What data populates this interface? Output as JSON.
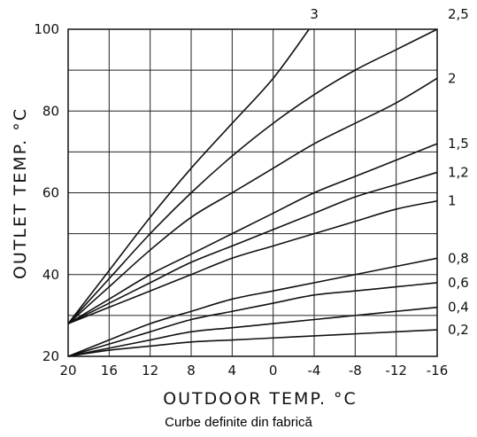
{
  "caption": "Curbe definite din fabrică",
  "chart_data": {
    "type": "line",
    "xlabel": "OUTDOOR TEMP. °C",
    "ylabel": "OUTLET TEMP. °C",
    "xlim": [
      20,
      -16
    ],
    "ylim": [
      20,
      100
    ],
    "x_ticks": [
      "20",
      "16",
      "12",
      "8",
      "4",
      "0",
      "-4",
      "-8",
      "-12",
      "-16"
    ],
    "y_ticks": [
      "20",
      "40",
      "60",
      "80",
      "100"
    ],
    "grid": true,
    "colors": {
      "line": "#111111",
      "grid": "#222222",
      "background": "#ffffff"
    },
    "series": [
      {
        "name": "3",
        "x": [
          20,
          16,
          12,
          8,
          4,
          0,
          -3.5
        ],
        "y": [
          28,
          41,
          54,
          66,
          77,
          88,
          100
        ]
      },
      {
        "name": "2,5",
        "x": [
          20,
          16,
          12,
          8,
          4,
          0,
          -4,
          -8,
          -12,
          -16
        ],
        "y": [
          28,
          39,
          50,
          60,
          69,
          77,
          84,
          90,
          95,
          100
        ]
      },
      {
        "name": "2",
        "x": [
          20,
          16,
          12,
          8,
          4,
          0,
          -4,
          -8,
          -12,
          -16
        ],
        "y": [
          28,
          37,
          46,
          54,
          60,
          66,
          72,
          77,
          82,
          88
        ]
      },
      {
        "name": "1,5",
        "x": [
          20,
          16,
          12,
          8,
          4,
          0,
          -4,
          -8,
          -12,
          -16
        ],
        "y": [
          28,
          34,
          40,
          45,
          50,
          55,
          60,
          64,
          68,
          72
        ]
      },
      {
        "name": "1,2",
        "x": [
          20,
          16,
          12,
          8,
          4,
          0,
          -4,
          -8,
          -12,
          -16
        ],
        "y": [
          28,
          33,
          38,
          43,
          47,
          51,
          55,
          59,
          62,
          65
        ]
      },
      {
        "name": "1",
        "x": [
          20,
          16,
          12,
          8,
          4,
          0,
          -4,
          -8,
          -12,
          -16
        ],
        "y": [
          28,
          32,
          36,
          40,
          44,
          47,
          50,
          53,
          56,
          58
        ]
      },
      {
        "name": "0,8",
        "x": [
          20,
          16,
          12,
          8,
          4,
          0,
          -4,
          -8,
          -12,
          -16
        ],
        "y": [
          20,
          24,
          28,
          31,
          34,
          36,
          38,
          40,
          42,
          44
        ]
      },
      {
        "name": "0,6",
        "x": [
          20,
          16,
          12,
          8,
          4,
          0,
          -4,
          -8,
          -12,
          -16
        ],
        "y": [
          20,
          23,
          26,
          29,
          31,
          33,
          35,
          36,
          37,
          38
        ]
      },
      {
        "name": "0,4",
        "x": [
          20,
          16,
          12,
          8,
          4,
          0,
          -4,
          -8,
          -12,
          -16
        ],
        "y": [
          20,
          22,
          24,
          26,
          27,
          28,
          29,
          30,
          31,
          32
        ]
      },
      {
        "name": "0,2",
        "x": [
          20,
          16,
          12,
          8,
          4,
          0,
          -4,
          -8,
          -12,
          -16
        ],
        "y": [
          20,
          21.5,
          22.5,
          23.5,
          24,
          24.5,
          25,
          25.5,
          26,
          26.5
        ]
      }
    ]
  }
}
